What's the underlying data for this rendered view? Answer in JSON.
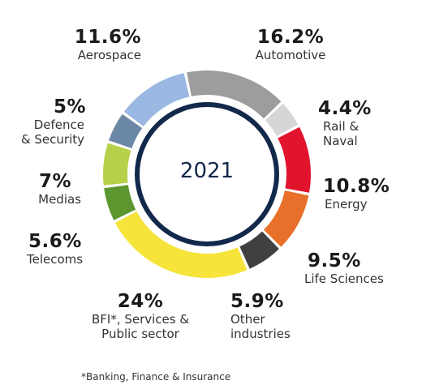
{
  "chart_data": {
    "type": "pie",
    "center_label": "2021",
    "footnote": "*Banking, Finance & Insurance",
    "slices": [
      {
        "name": "Automotive",
        "value": 16.2,
        "label": "16.2%",
        "color": "#9d9d9d",
        "lines": [
          "Automotive"
        ]
      },
      {
        "name": "Rail & Naval",
        "value": 4.4,
        "label": "4.4%",
        "color": "#d6d6d6",
        "lines": [
          "Rail &",
          "Naval"
        ]
      },
      {
        "name": "Energy",
        "value": 10.8,
        "label": "10.8%",
        "color": "#e2142d",
        "lines": [
          "Energy"
        ]
      },
      {
        "name": "Life Sciences",
        "value": 9.5,
        "label": "9.5%",
        "color": "#e8702a",
        "lines": [
          "Life Sciences"
        ]
      },
      {
        "name": "Other industries",
        "value": 5.9,
        "label": "5.9%",
        "color": "#404040",
        "lines": [
          "Other",
          "industries"
        ]
      },
      {
        "name": "BFI*, Services & Public sector",
        "value": 24,
        "label": "24%",
        "color": "#f7e43a",
        "lines": [
          "BFI*, Services &",
          "Public sector"
        ]
      },
      {
        "name": "Telecoms",
        "value": 5.6,
        "label": "5.6%",
        "color": "#5b962e",
        "lines": [
          "Telecoms"
        ]
      },
      {
        "name": "Medias",
        "value": 7,
        "label": "7%",
        "color": "#b6d14a",
        "lines": [
          "Medias"
        ]
      },
      {
        "name": "Defence & Security",
        "value": 5,
        "label": "5%",
        "color": "#6b87a6",
        "lines": [
          "Defence",
          "& Security"
        ]
      },
      {
        "name": "Aerospace",
        "value": 11.6,
        "label": "11.6%",
        "color": "#9ab8e1",
        "lines": [
          "Aerospace"
        ]
      }
    ],
    "center_ring_color": "#13294b"
  }
}
